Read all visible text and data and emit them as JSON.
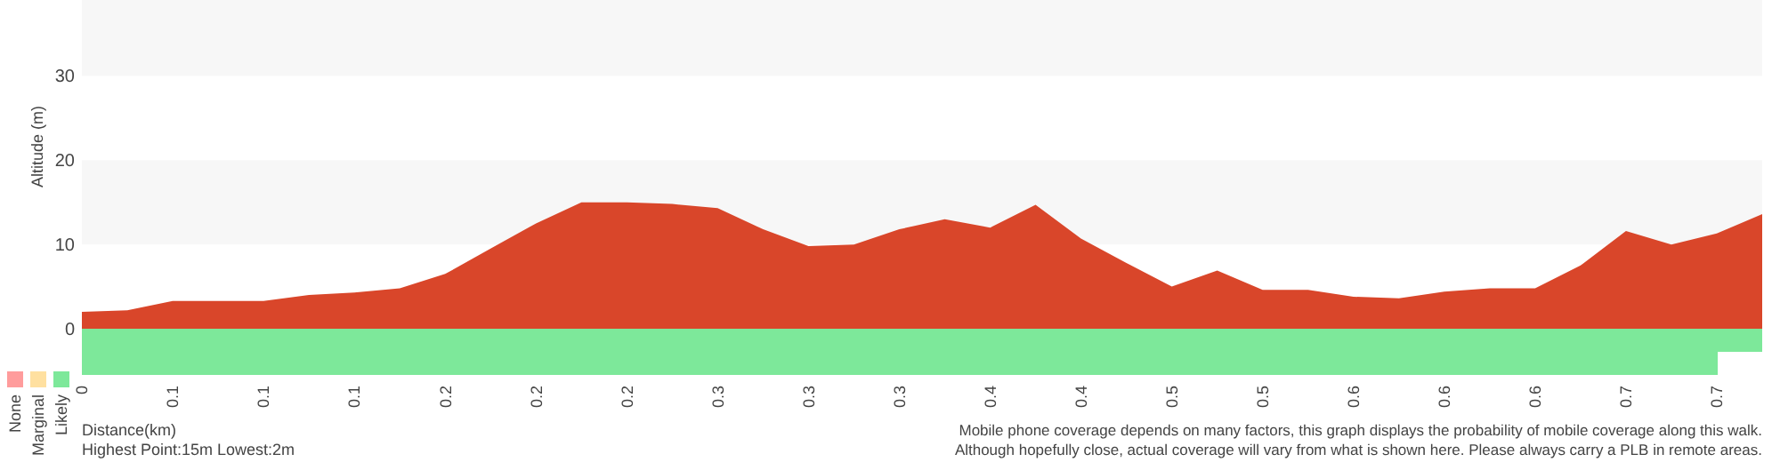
{
  "chart_data": [
    {
      "type": "area",
      "xlabel": "Distance(km)",
      "ylabel": "Altitude (m)",
      "categories": [
        "0",
        null,
        "0.1",
        null,
        "0.1",
        null,
        "0.1",
        null,
        "0.2",
        null,
        "0.2",
        null,
        "0.2",
        null,
        "0.3",
        null,
        "0.3",
        null,
        "0.3",
        null,
        "0.4",
        null,
        "0.4",
        null,
        "0.5",
        null,
        "0.5",
        null,
        "0.6",
        null,
        "0.6",
        null,
        "0.6",
        null,
        "0.7",
        null,
        "0.7",
        null
      ],
      "values": [
        2.0,
        2.2,
        3.3,
        3.3,
        3.3,
        4.0,
        4.3,
        4.8,
        6.5,
        9.5,
        12.5,
        15,
        15,
        14.8,
        14.3,
        11.8,
        9.8,
        10,
        11.8,
        13,
        12,
        14.7,
        10.7,
        7.8,
        5.0,
        6.9,
        4.6,
        4.6,
        3.8,
        3.6,
        4.4,
        4.8,
        4.8,
        7.5,
        11.6,
        10.0,
        11.3,
        13.6
      ],
      "color": "#d9462a",
      "ylim": [
        0,
        39
      ],
      "yticks": [
        0,
        10,
        20,
        30
      ],
      "annotations": [
        "Highest Point:15m Lowest:2m",
        "Mobile phone coverage depends on many factors, this graph displays the probability of mobile coverage along this walk.",
        "Although hopefully close, actual coverage will vary from what is shown here. Please always carry a PLB in remote areas."
      ]
    },
    {
      "type": "other",
      "annotations": [
        "None",
        "Marginal",
        "Likely"
      ],
      "colors": [
        "#ff9c9c",
        "#ffe0a0",
        "#7de89a"
      ]
    }
  ]
}
